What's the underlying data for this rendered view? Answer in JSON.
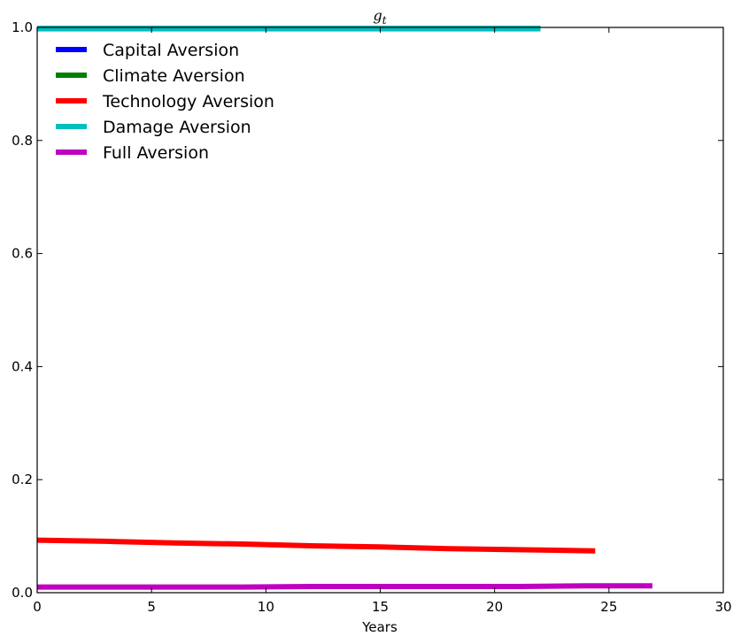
{
  "chart_data": {
    "type": "line",
    "title": "g_t",
    "xlabel": "Years",
    "ylabel": "",
    "xlim": [
      0,
      30
    ],
    "ylim": [
      0,
      1.0
    ],
    "x_ticks": [
      0,
      5,
      10,
      15,
      20,
      25,
      30
    ],
    "y_ticks": [
      0.0,
      0.2,
      0.4,
      0.6,
      0.8,
      1.0
    ],
    "x_tick_labels": [
      "0",
      "5",
      "10",
      "15",
      "20",
      "25",
      "30"
    ],
    "y_tick_labels": [
      "0.0",
      "0.2",
      "0.4",
      "0.6",
      "0.8",
      "1.0"
    ],
    "grid": false,
    "legend_position": "upper-left",
    "series": [
      {
        "name": "Capital Aversion",
        "color": "#0000ff",
        "x": [
          0,
          22
        ],
        "y": [
          0.998,
          0.998
        ]
      },
      {
        "name": "Climate Aversion",
        "color": "#008000",
        "x": [
          0,
          22
        ],
        "y": [
          0.998,
          0.998
        ]
      },
      {
        "name": "Technology Aversion",
        "color": "#ff0000",
        "x": [
          0,
          3,
          6,
          9,
          12,
          15,
          18,
          21,
          24.4
        ],
        "y": [
          0.093,
          0.091,
          0.088,
          0.086,
          0.083,
          0.081,
          0.078,
          0.076,
          0.074
        ]
      },
      {
        "name": "Damage Aversion",
        "color": "#00bfbf",
        "x": [
          0,
          22
        ],
        "y": [
          0.998,
          0.998
        ]
      },
      {
        "name": "Full Aversion",
        "color": "#bf00bf",
        "x": [
          0,
          3,
          6,
          9,
          12,
          15,
          18,
          21,
          24,
          26.9
        ],
        "y": [
          0.01,
          0.01,
          0.01,
          0.01,
          0.011,
          0.011,
          0.011,
          0.011,
          0.012,
          0.012
        ]
      }
    ]
  }
}
